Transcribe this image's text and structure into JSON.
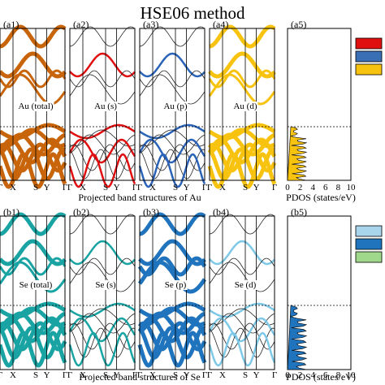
{
  "title": "HSE06 method",
  "rows": [
    {
      "caption": "Projected band structures of Au",
      "panels": [
        {
          "tag": "(a1)",
          "label": "Au (total)",
          "color": "#c8650a",
          "weight": "total"
        },
        {
          "tag": "(a2)",
          "label": "Au (s)",
          "color": "#e01010",
          "weight": "s"
        },
        {
          "tag": "(a3)",
          "label": "Au (p)",
          "color": "#2a63b8",
          "weight": "p"
        },
        {
          "tag": "(a4)",
          "label": "Au (d)",
          "color": "#f7c30f",
          "weight": "d"
        }
      ],
      "pdos_tag": "(a5)",
      "pdos_xlabel": "PDOS (states/eV)",
      "legend_colors": [
        "#e01010",
        "#3a6fb5",
        "#f7c30f"
      ]
    },
    {
      "caption": "Projected band structures of Se",
      "panels": [
        {
          "tag": "(b1)",
          "label": "Se (total)",
          "color": "#1aa3a3",
          "weight": "total"
        },
        {
          "tag": "(b2)",
          "label": "Se (s)",
          "color": "#1aa3a3",
          "weight": "s"
        },
        {
          "tag": "(b3)",
          "label": "Se (p)",
          "color": "#1f74bd",
          "weight": "p"
        },
        {
          "tag": "(b4)",
          "label": "Se (d)",
          "color": "#7ec8e8",
          "weight": "d"
        }
      ],
      "pdos_tag": "(b5)",
      "pdos_xlabel": "PDOS (states/eV)",
      "legend_colors": [
        "#a8d4ec",
        "#1f74bd",
        "#9fd88a"
      ]
    }
  ],
  "kpath": [
    "Γ",
    "X",
    "S",
    "Y",
    "Γ"
  ],
  "pdos_ticks": [
    "0",
    "2",
    "4",
    "6",
    "8",
    "10"
  ]
}
